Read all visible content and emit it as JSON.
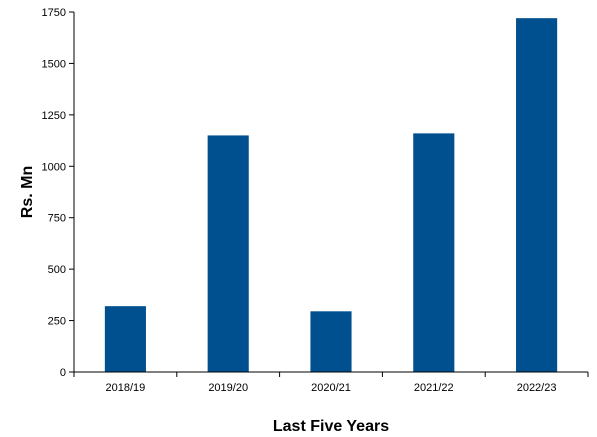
{
  "chart_data": {
    "type": "bar",
    "title": "",
    "xlabel": "Last Five Years",
    "ylabel": "Rs. Mn",
    "categories": [
      "2018/19",
      "2019/20",
      "2020/21",
      "2021/22",
      "2022/23"
    ],
    "values": [
      320,
      1150,
      295,
      1160,
      1720
    ],
    "ylim": [
      0,
      1750
    ],
    "yticks": [
      0,
      250,
      500,
      750,
      1000,
      1250,
      1500,
      1750
    ],
    "grid": false,
    "legend": "none",
    "bar_color": "#00508F",
    "axis_color": "#000000"
  }
}
